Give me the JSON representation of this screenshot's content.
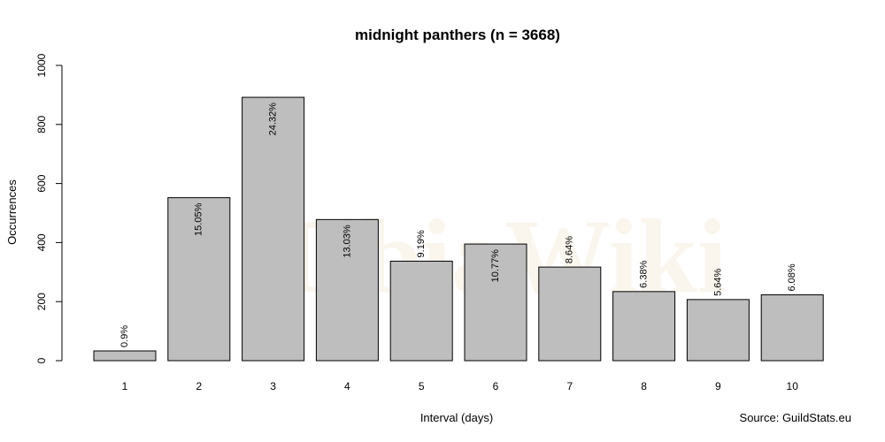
{
  "chart_data": {
    "type": "bar",
    "title": "midnight panthers (n = 3668)",
    "xlabel": "Interval (days)",
    "ylabel": "Occurrences",
    "source": "Source: GuildStats.eu",
    "categories": [
      "1",
      "2",
      "3",
      "4",
      "5",
      "6",
      "7",
      "8",
      "9",
      "10"
    ],
    "values": [
      33,
      552,
      892,
      478,
      337,
      395,
      317,
      234,
      207,
      223
    ],
    "bar_labels": [
      "0.9%",
      "15.05%",
      "24.32%",
      "13.03%",
      "9.19%",
      "10.77%",
      "8.64%",
      "6.38%",
      "5.64%",
      "6.08%"
    ],
    "ylim": [
      0,
      1000
    ],
    "yticks": [
      0,
      200,
      400,
      600,
      800,
      1000
    ],
    "bar_color": "#bebebe",
    "grid": false,
    "watermark": "TibiaWiki"
  }
}
